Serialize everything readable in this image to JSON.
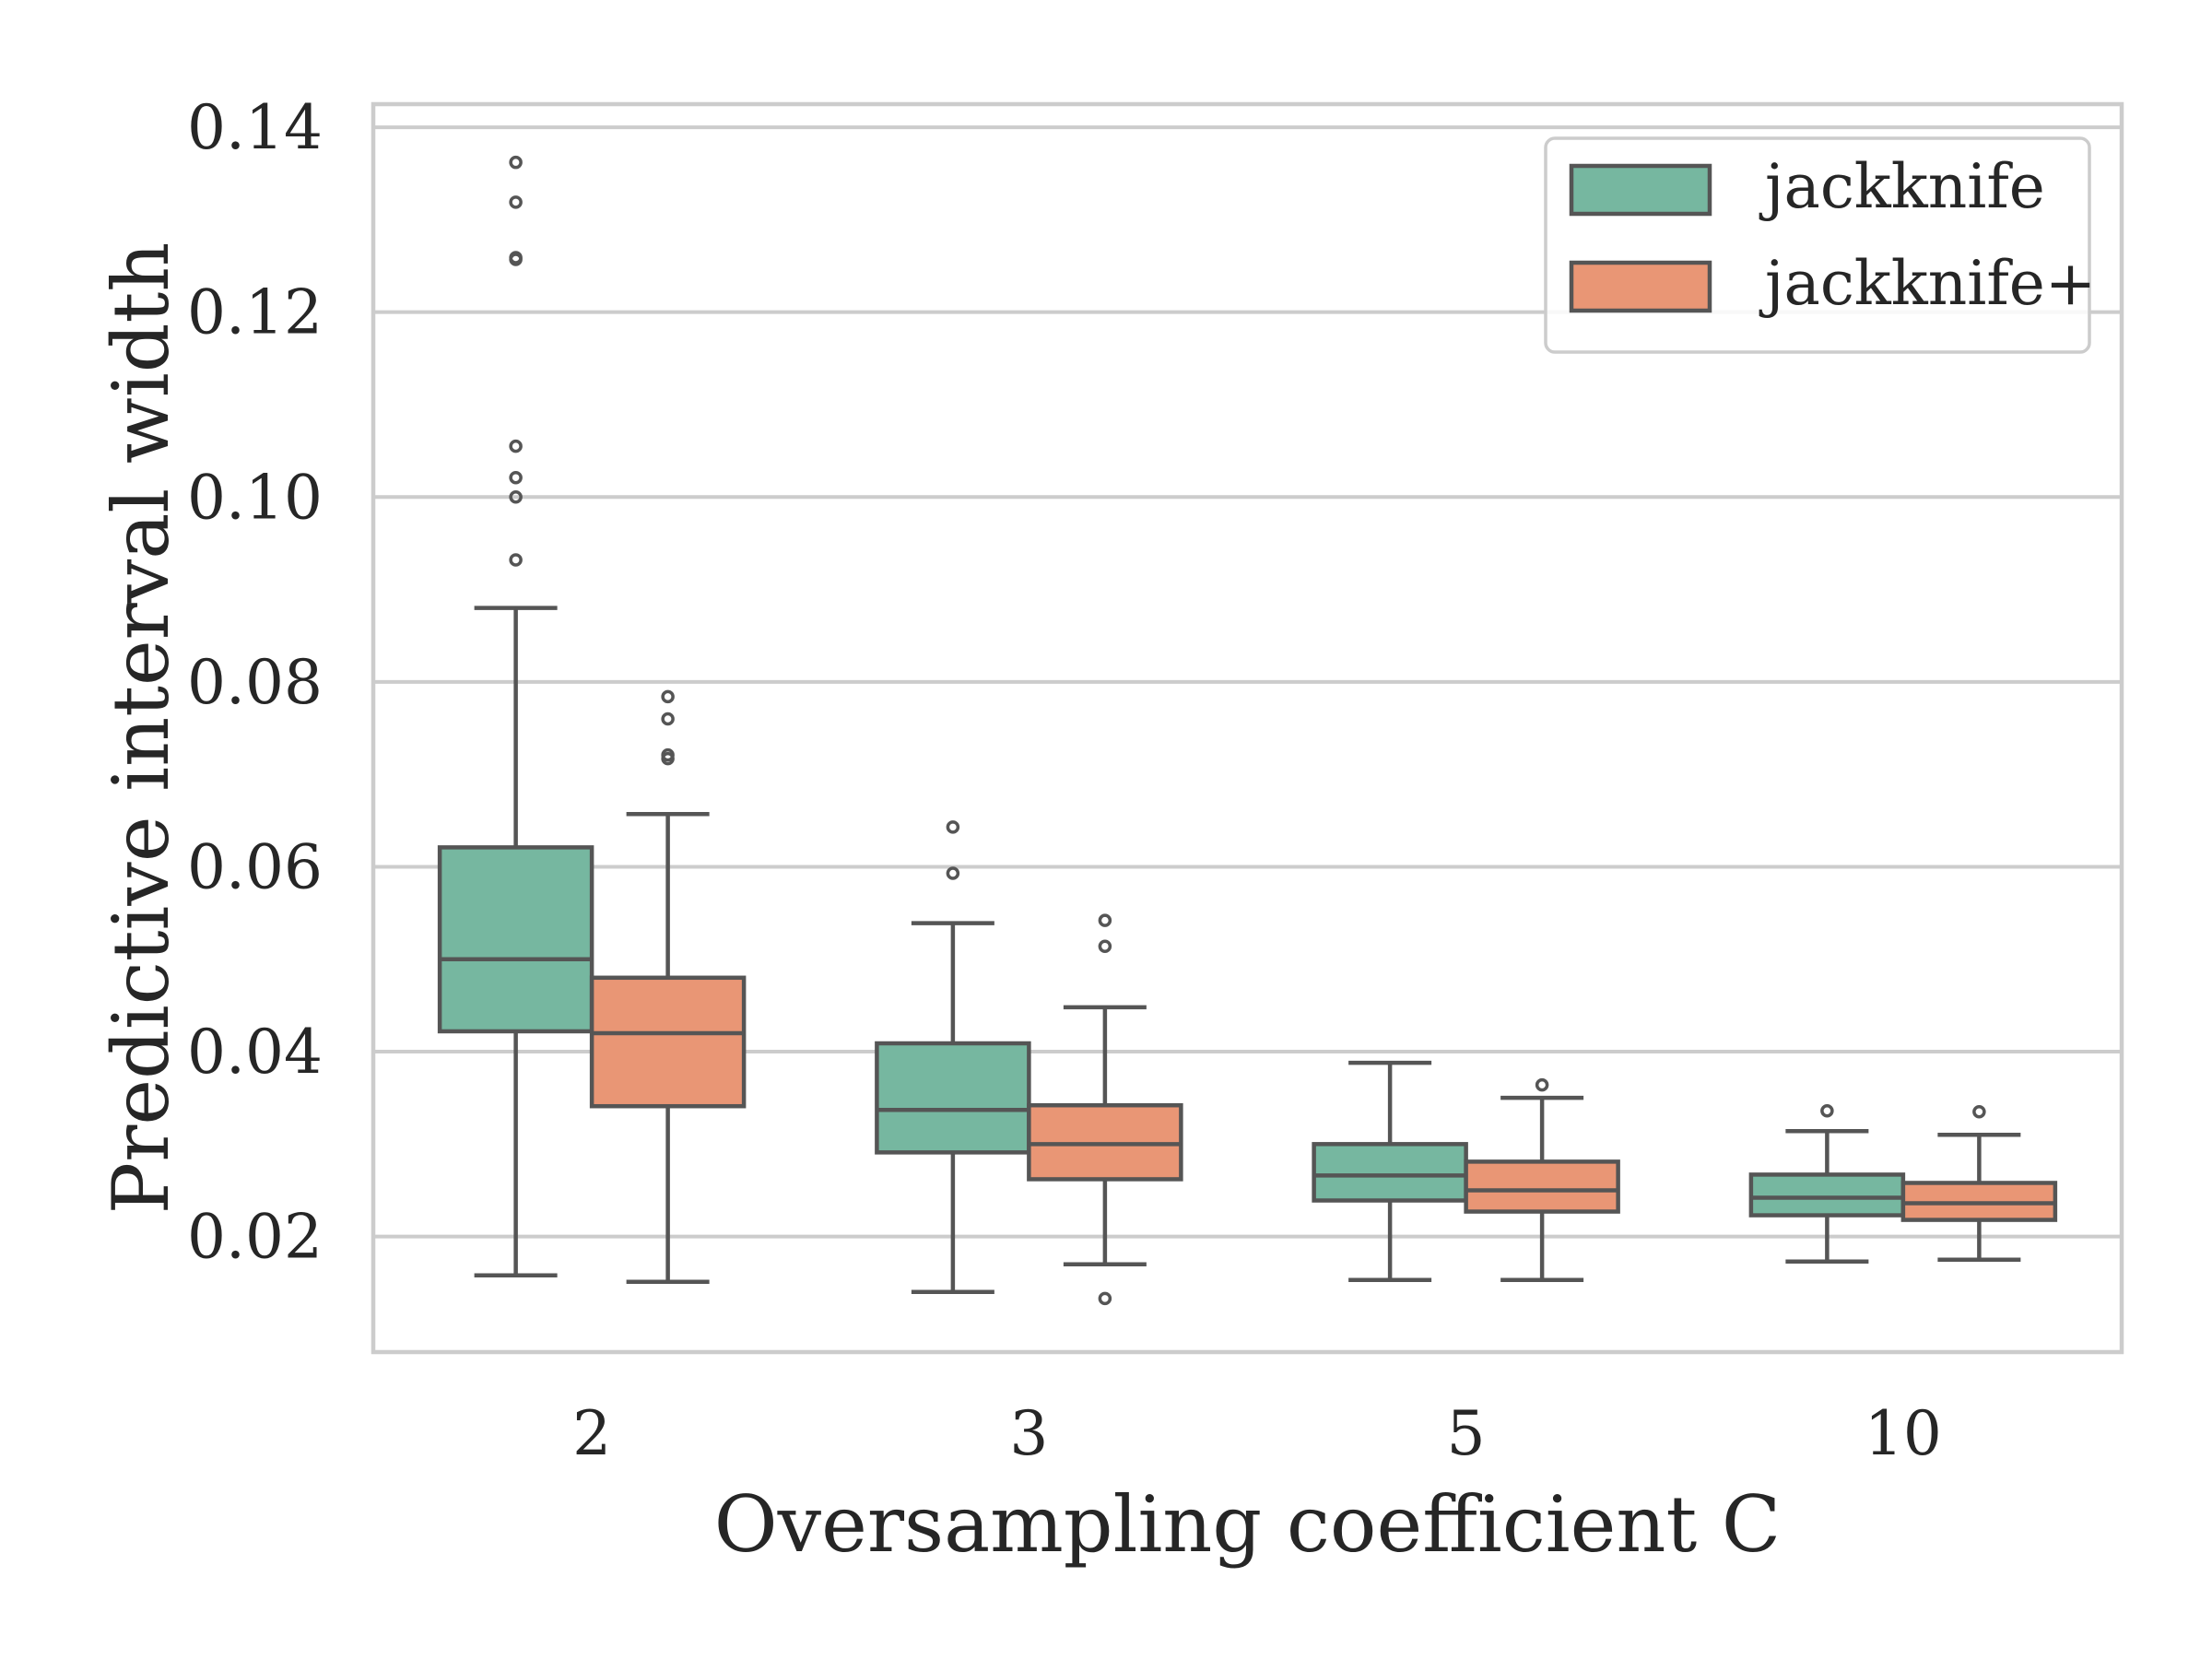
{
  "chart_data": {
    "type": "box",
    "title": "",
    "xlabel": "Oversampling coefficient C",
    "ylabel": "Predictive interval width",
    "categories": [
      "2",
      "3",
      "5",
      "10"
    ],
    "ylim": [
      0.0075,
      0.1425
    ],
    "yticks": [
      0.02,
      0.04,
      0.06,
      0.08,
      0.1,
      0.12,
      0.14
    ],
    "ytick_labels": [
      "0.02",
      "0.04",
      "0.06",
      "0.08",
      "0.10",
      "0.12",
      "0.14"
    ],
    "grid": "horizontal",
    "legend_position": "top-right",
    "series": [
      {
        "name": "jackknife",
        "color": "#76b7a0",
        "boxes": [
          {
            "whislo": 0.0158,
            "q1": 0.0422,
            "med": 0.05,
            "q3": 0.0621,
            "whishi": 0.088,
            "fliers": [
              0.0932,
              0.1,
              0.1021,
              0.1055,
              0.1257,
              0.1259,
              0.1319,
              0.1362
            ]
          },
          {
            "whislo": 0.014,
            "q1": 0.0291,
            "med": 0.0337,
            "q3": 0.0409,
            "whishi": 0.0539,
            "fliers": [
              0.0593,
              0.0643
            ]
          },
          {
            "whislo": 0.0153,
            "q1": 0.0239,
            "med": 0.0266,
            "q3": 0.03,
            "whishi": 0.0388,
            "fliers": []
          },
          {
            "whislo": 0.0173,
            "q1": 0.0223,
            "med": 0.0242,
            "q3": 0.0267,
            "whishi": 0.0314,
            "fliers": [
              0.0336
            ]
          }
        ]
      },
      {
        "name": "jackknife+",
        "color": "#e99675",
        "boxes": [
          {
            "whislo": 0.0151,
            "q1": 0.0341,
            "med": 0.042,
            "q3": 0.048,
            "whishi": 0.0657,
            "fliers": [
              0.0717,
              0.0721,
              0.076,
              0.0784
            ]
          },
          {
            "whislo": 0.017,
            "q1": 0.0262,
            "med": 0.03,
            "q3": 0.0342,
            "whishi": 0.0448,
            "fliers": [
              0.0133,
              0.0514,
              0.0542
            ]
          },
          {
            "whislo": 0.0153,
            "q1": 0.0227,
            "med": 0.025,
            "q3": 0.0281,
            "whishi": 0.035,
            "fliers": [
              0.0364
            ]
          },
          {
            "whislo": 0.0175,
            "q1": 0.0218,
            "med": 0.0236,
            "q3": 0.0258,
            "whishi": 0.031,
            "fliers": [
              0.0335
            ]
          }
        ]
      }
    ]
  }
}
